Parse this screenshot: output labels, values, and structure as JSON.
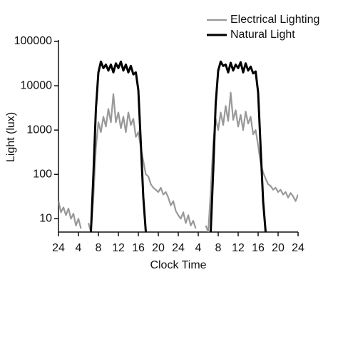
{
  "chart_data": {
    "type": "line",
    "xlabel": "Clock Time",
    "ylabel": "Light (lux)",
    "yscale": "log",
    "legend": "upper right",
    "x": [
      0,
      0.5,
      1,
      1.5,
      2,
      2.5,
      3,
      3.5,
      4,
      4.5,
      5,
      5.5,
      6,
      6.5,
      7,
      7.5,
      8,
      8.5,
      9,
      9.5,
      10,
      10.5,
      11,
      11.5,
      12,
      12.5,
      13,
      13.5,
      14,
      14.5,
      15,
      15.5,
      16,
      16.5,
      17,
      17.5,
      18,
      18.5,
      19,
      19.5,
      20,
      20.5,
      21,
      21.5,
      22,
      22.5,
      23,
      23.5,
      24,
      24.5,
      25,
      25.5,
      26,
      26.5,
      27,
      27.5,
      28,
      28.5,
      29,
      29.5,
      30,
      30.5,
      31,
      31.5,
      32,
      32.5,
      33,
      33.5,
      34,
      34.5,
      35,
      35.5,
      36,
      36.5,
      37,
      37.5,
      38,
      38.5,
      39,
      39.5,
      40,
      40.5,
      41,
      41.5,
      42,
      42.5,
      43,
      43.5,
      44,
      44.5,
      45,
      45.5,
      46,
      46.5,
      47,
      47.5,
      48
    ],
    "series": [
      {
        "name": "Electrical Lighting",
        "color": "#999999",
        "values": [
          25,
          14,
          18,
          12,
          17,
          10,
          13,
          7,
          10,
          6,
          null,
          null,
          8,
          5,
          30,
          400,
          1500,
          900,
          2000,
          1200,
          3000,
          1500,
          6500,
          1500,
          2500,
          1100,
          2000,
          900,
          2500,
          1300,
          1800,
          700,
          900,
          400,
          200,
          100,
          90,
          60,
          50,
          45,
          40,
          50,
          35,
          40,
          30,
          20,
          25,
          15,
          12,
          10,
          14,
          8,
          12,
          7,
          9,
          6,
          null,
          null,
          null,
          7,
          5,
          40,
          500,
          1800,
          1000,
          2500,
          1300,
          3500,
          1600,
          7000,
          1700,
          2800,
          1200,
          2200,
          1000,
          2600,
          1400,
          2000,
          800,
          1000,
          450,
          180,
          110,
          80,
          60,
          55,
          45,
          50,
          40,
          45,
          35,
          40,
          30,
          38,
          32,
          25,
          35
        ]
      },
      {
        "name": "Natural Light",
        "color": "#000000",
        "values": [
          null,
          null,
          null,
          null,
          null,
          null,
          null,
          null,
          null,
          null,
          null,
          null,
          null,
          5,
          100,
          3000,
          20000,
          35000,
          25000,
          30000,
          22000,
          30000,
          20000,
          32000,
          25000,
          35000,
          22000,
          30000,
          20000,
          28000,
          18000,
          20000,
          8000,
          500,
          30,
          5,
          null,
          null,
          null,
          null,
          null,
          null,
          null,
          null,
          null,
          null,
          null,
          null,
          null,
          null,
          null,
          null,
          null,
          null,
          null,
          null,
          null,
          null,
          null,
          null,
          null,
          5,
          120,
          4000,
          22000,
          35000,
          28000,
          30000,
          20000,
          33000,
          22000,
          30000,
          25000,
          34000,
          20000,
          32000,
          22000,
          27000,
          19000,
          21000,
          7000,
          400,
          25,
          5,
          null,
          null,
          null,
          null,
          null,
          null,
          null,
          null,
          null,
          null,
          null,
          null,
          null
        ]
      }
    ],
    "xlim": [
      0,
      48
    ],
    "xticks": [
      {
        "value": 0,
        "label": "24"
      },
      4,
      8,
      12,
      16,
      20,
      24,
      {
        "value": 28,
        "label": "4"
      },
      {
        "value": 32,
        "label": "8"
      },
      {
        "value": 36,
        "label": "12"
      },
      {
        "value": 40,
        "label": "16"
      },
      {
        "value": 44,
        "label": "20"
      },
      {
        "value": 48,
        "label": "24"
      }
    ],
    "ylim": [
      5,
      100000
    ],
    "yticks": [
      10,
      100,
      1000,
      10000,
      100000
    ]
  }
}
